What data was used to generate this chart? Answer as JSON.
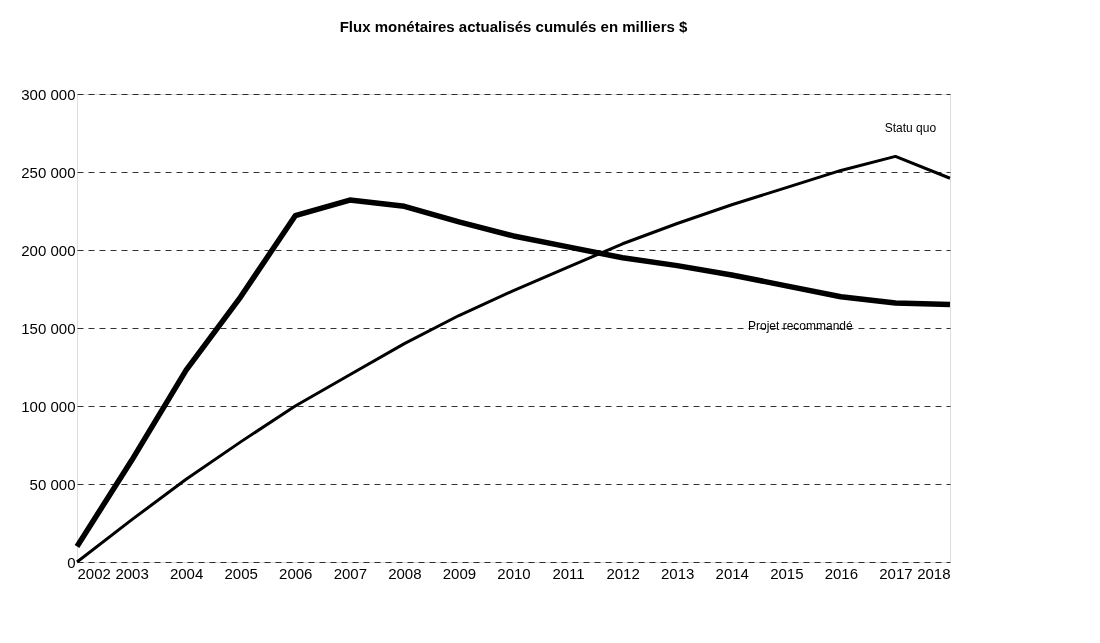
{
  "chart_data": {
    "type": "line",
    "title": "Flux monétaires actualisés cumulés en milliers $",
    "x": [
      2002,
      2003,
      2004,
      2005,
      2006,
      2007,
      2008,
      2009,
      2010,
      2011,
      2012,
      2013,
      2014,
      2015,
      2016,
      2017,
      2018
    ],
    "series": [
      {
        "name": "Projet recommandé",
        "color": "#000000",
        "values": [
          10000,
          65000,
          123000,
          170000,
          222000,
          232000,
          228000,
          218000,
          209000,
          202000,
          195000,
          190000,
          184000,
          177000,
          170000,
          166000,
          165000
        ]
      },
      {
        "name": "Statu quo",
        "color": "#000000",
        "values": [
          0,
          27000,
          53000,
          77000,
          100000,
          120000,
          140000,
          158000,
          174000,
          189000,
          204000,
          217000,
          229000,
          240000,
          251000,
          260000,
          246000
        ]
      }
    ],
    "xlim": [
      2002,
      2018
    ],
    "xticks": [
      2002,
      2003,
      2004,
      2005,
      2006,
      2007,
      2008,
      2009,
      2010,
      2011,
      2012,
      2013,
      2014,
      2015,
      2016,
      2017,
      2018
    ],
    "ylim": [
      0,
      300000
    ],
    "yticks": [
      {
        "value": 0,
        "label": "0"
      },
      {
        "value": 50000,
        "label": "50 000"
      },
      {
        "value": 100000,
        "label": "100 000"
      },
      {
        "value": 150000,
        "label": "150 000"
      },
      {
        "value": 200000,
        "label": "200 000"
      },
      {
        "value": 250000,
        "label": "250 000"
      },
      {
        "value": 300000,
        "label": "300 000"
      }
    ],
    "grid": "y",
    "legend": false,
    "marker": "none",
    "line_style": "solid"
  }
}
